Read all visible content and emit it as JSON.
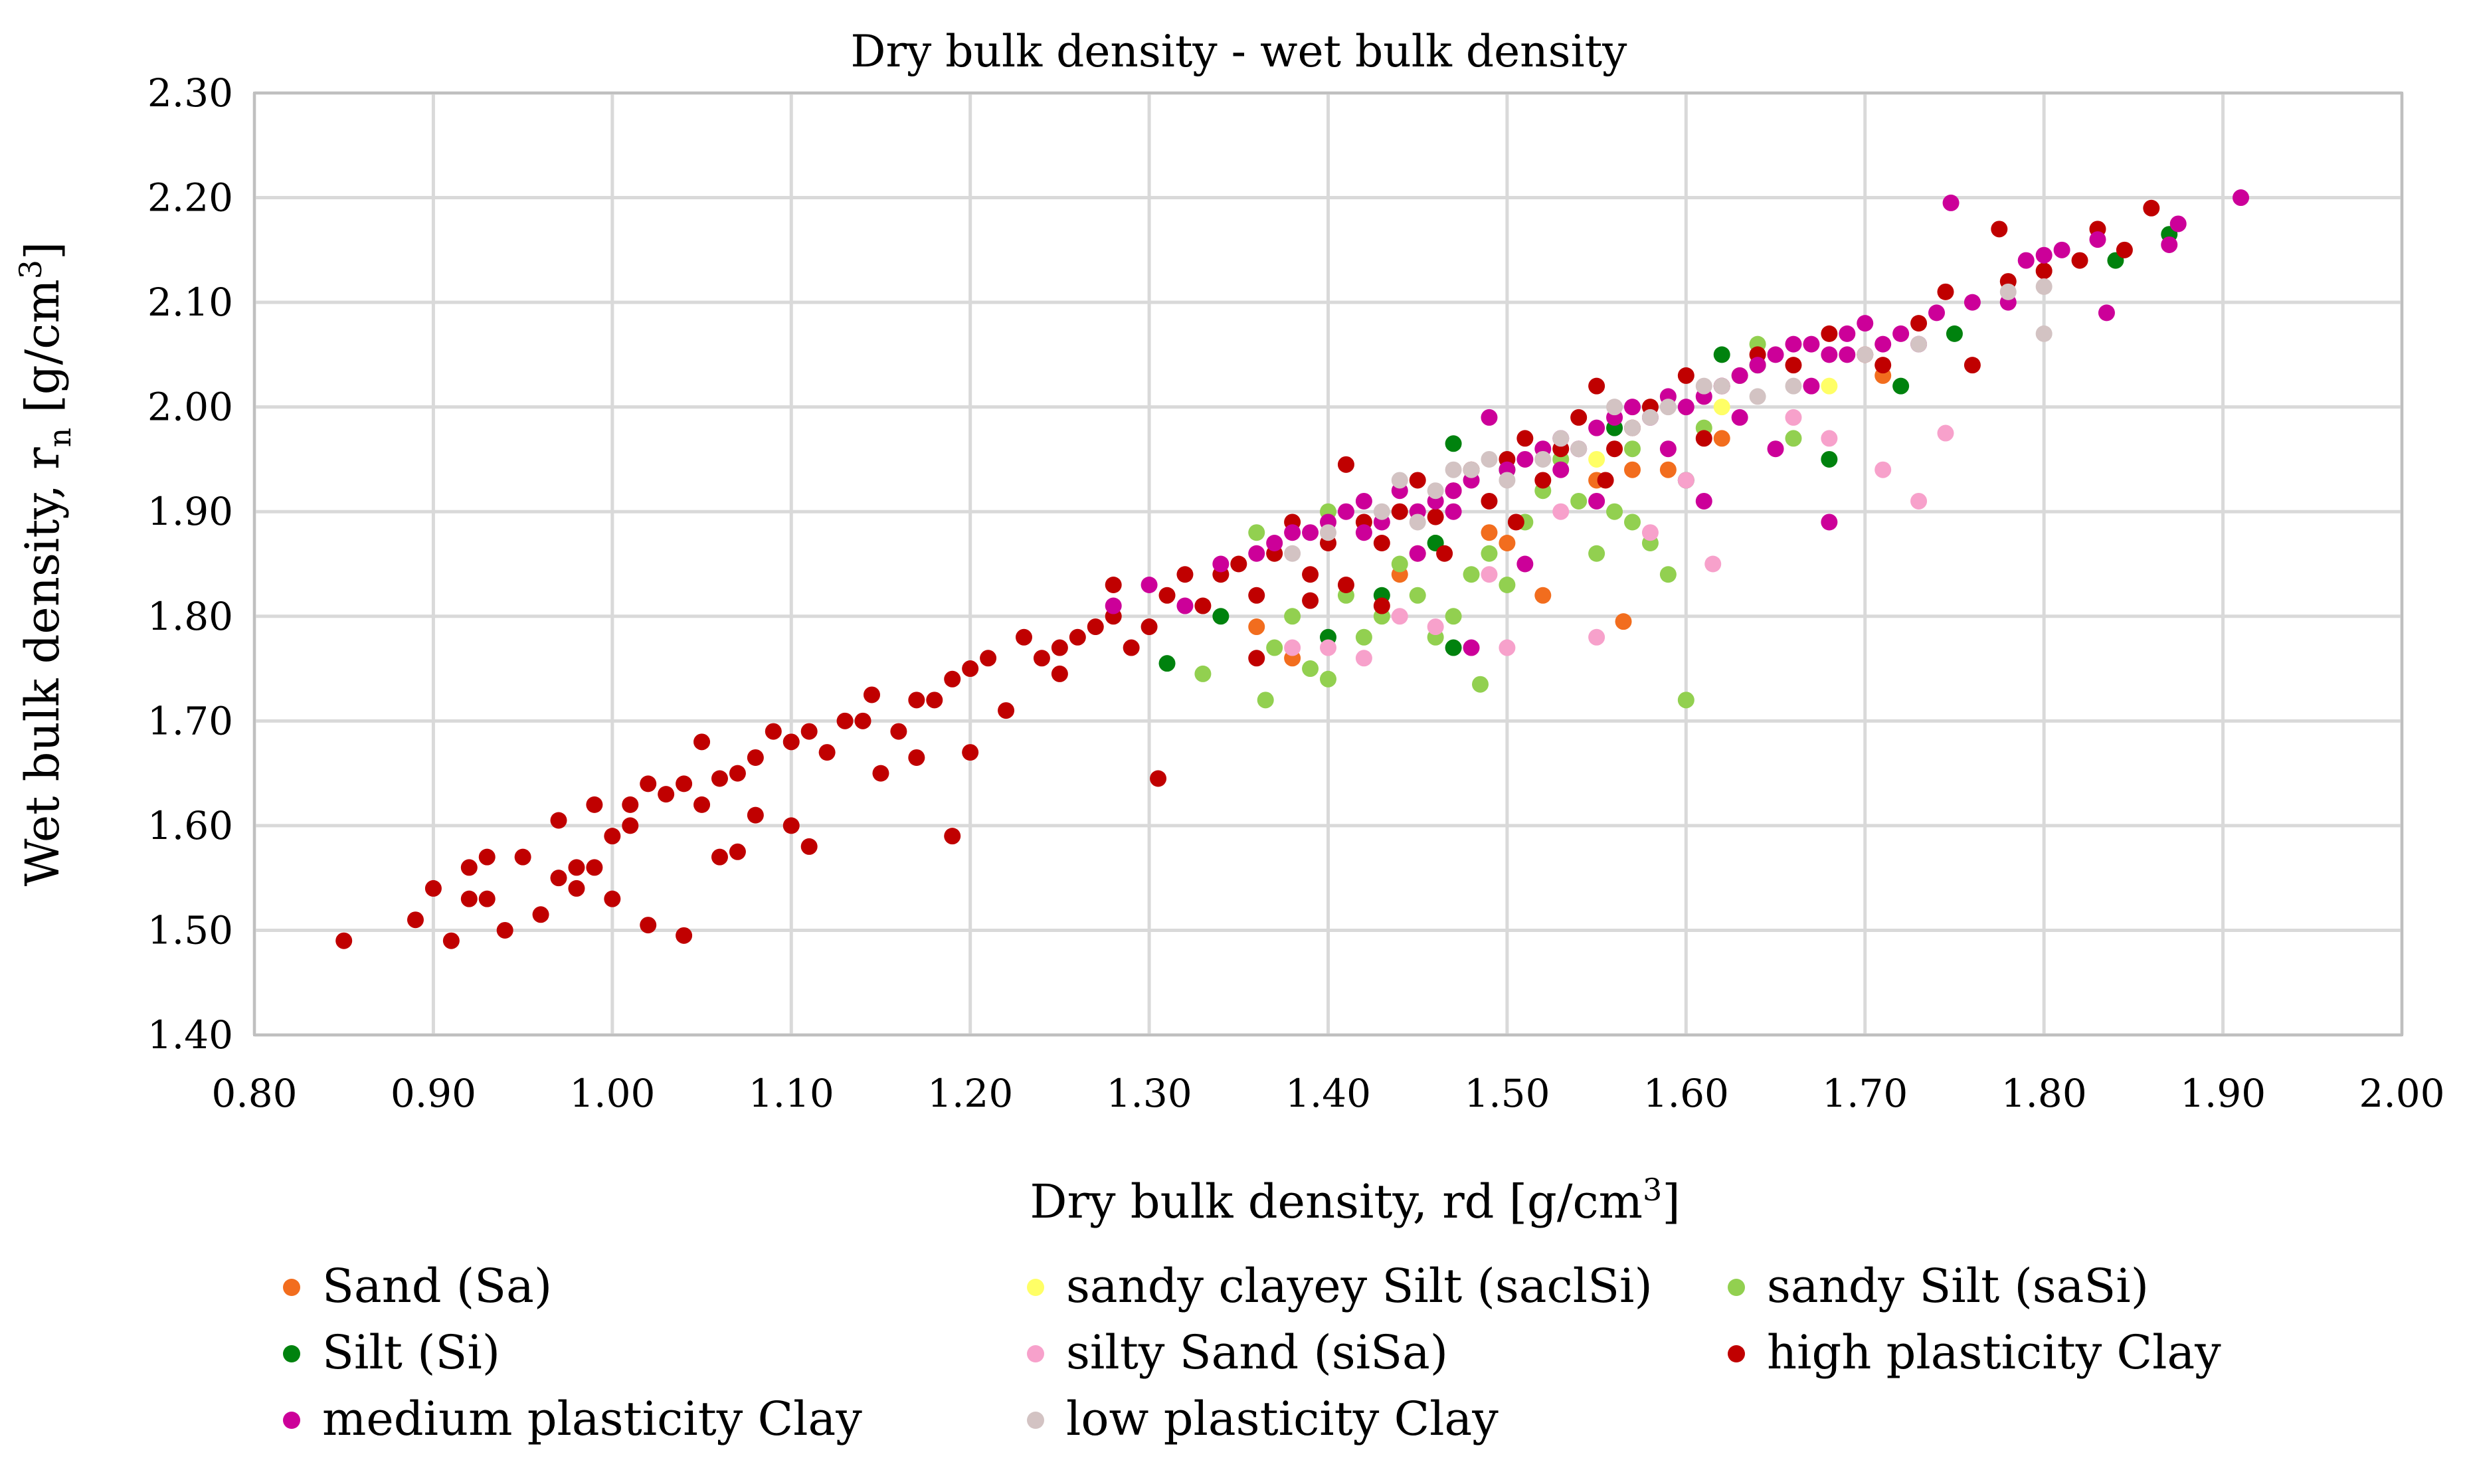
{
  "chart_data": {
    "type": "scatter",
    "title": "Dry bulk density - wet bulk density",
    "xlabel_main": "Dry bulk density, rd [g/cm",
    "xlabel_sup": "3",
    "xlabel_end": "]",
    "ylabel_main": "Wet bulk density,  r",
    "ylabel_sub": "n",
    "ylabel_mid": " [g/cm",
    "ylabel_sup": "3",
    "ylabel_end": "]",
    "xlim": [
      0.8,
      2.0
    ],
    "ylim": [
      1.4,
      2.3
    ],
    "x_ticks": [
      "0.80",
      "0.90",
      "1.00",
      "1.10",
      "1.20",
      "1.30",
      "1.40",
      "1.50",
      "1.60",
      "1.70",
      "1.80",
      "1.90",
      "2.00"
    ],
    "y_ticks": [
      "1.40",
      "1.50",
      "1.60",
      "1.70",
      "1.80",
      "1.90",
      "2.00",
      "2.10",
      "2.20",
      "2.30"
    ],
    "grid": true,
    "legend_position": "bottom",
    "series": [
      {
        "name": "Sand (Sa)",
        "color": "#f26d1e",
        "points": [
          [
            1.36,
            1.79
          ],
          [
            1.38,
            1.76
          ],
          [
            1.44,
            1.84
          ],
          [
            1.49,
            1.88
          ],
          [
            1.52,
            1.82
          ],
          [
            1.565,
            1.795
          ],
          [
            1.55,
            1.93
          ],
          [
            1.59,
            1.94
          ],
          [
            1.62,
            1.97
          ],
          [
            1.71,
            2.03
          ],
          [
            1.57,
            1.94
          ],
          [
            1.5,
            1.87
          ]
        ]
      },
      {
        "name": "sandy clayey Silt (saclSi)",
        "color": "#ffff66",
        "points": [
          [
            1.45,
            1.86
          ],
          [
            1.55,
            1.95
          ],
          [
            1.62,
            2.0
          ],
          [
            1.68,
            2.02
          ]
        ]
      },
      {
        "name": "sandy Silt (saSi)",
        "color": "#92d050",
        "points": [
          [
            1.33,
            1.745
          ],
          [
            1.365,
            1.72
          ],
          [
            1.37,
            1.77
          ],
          [
            1.38,
            1.8
          ],
          [
            1.39,
            1.75
          ],
          [
            1.4,
            1.74
          ],
          [
            1.41,
            1.82
          ],
          [
            1.42,
            1.78
          ],
          [
            1.43,
            1.8
          ],
          [
            1.44,
            1.85
          ],
          [
            1.45,
            1.82
          ],
          [
            1.46,
            1.78
          ],
          [
            1.47,
            1.8
          ],
          [
            1.48,
            1.84
          ],
          [
            1.485,
            1.735
          ],
          [
            1.49,
            1.86
          ],
          [
            1.5,
            1.83
          ],
          [
            1.51,
            1.89
          ],
          [
            1.52,
            1.92
          ],
          [
            1.53,
            1.95
          ],
          [
            1.54,
            1.91
          ],
          [
            1.55,
            1.86
          ],
          [
            1.56,
            1.9
          ],
          [
            1.57,
            1.89
          ],
          [
            1.58,
            1.87
          ],
          [
            1.59,
            1.84
          ],
          [
            1.6,
            1.72
          ],
          [
            1.61,
            1.98
          ],
          [
            1.63,
            2.03
          ],
          [
            1.64,
            2.06
          ],
          [
            1.66,
            1.97
          ],
          [
            1.36,
            1.88
          ],
          [
            1.4,
            1.9
          ],
          [
            1.46,
            1.87
          ],
          [
            1.57,
            1.96
          ]
        ]
      },
      {
        "name": "Silt (Si)",
        "color": "#00820e",
        "points": [
          [
            1.31,
            1.755
          ],
          [
            1.34,
            1.8
          ],
          [
            1.4,
            1.78
          ],
          [
            1.43,
            1.82
          ],
          [
            1.46,
            1.87
          ],
          [
            1.47,
            1.77
          ],
          [
            1.47,
            1.965
          ],
          [
            1.5,
            1.94
          ],
          [
            1.56,
            1.98
          ],
          [
            1.6,
            1.93
          ],
          [
            1.62,
            2.05
          ],
          [
            1.64,
            2.04
          ],
          [
            1.68,
            1.95
          ],
          [
            1.72,
            2.02
          ],
          [
            1.75,
            2.07
          ],
          [
            1.84,
            2.14
          ],
          [
            1.87,
            2.165
          ]
        ]
      },
      {
        "name": "silty Sand (siSa)",
        "color": "#f7a1cb",
        "points": [
          [
            1.38,
            1.77
          ],
          [
            1.4,
            1.77
          ],
          [
            1.42,
            1.76
          ],
          [
            1.44,
            1.8
          ],
          [
            1.46,
            1.79
          ],
          [
            1.49,
            1.84
          ],
          [
            1.5,
            1.77
          ],
          [
            1.55,
            1.78
          ],
          [
            1.58,
            1.88
          ],
          [
            1.6,
            1.93
          ],
          [
            1.615,
            1.85
          ],
          [
            1.66,
            1.99
          ],
          [
            1.68,
            1.97
          ],
          [
            1.71,
            1.94
          ],
          [
            1.73,
            1.91
          ],
          [
            1.745,
            1.975
          ],
          [
            1.53,
            1.9
          ]
        ]
      },
      {
        "name": "high plasticity Clay",
        "color": "#c00000",
        "points": [
          [
            0.85,
            1.49
          ],
          [
            0.89,
            1.51
          ],
          [
            0.9,
            1.54
          ],
          [
            0.91,
            1.49
          ],
          [
            0.92,
            1.53
          ],
          [
            0.92,
            1.56
          ],
          [
            0.93,
            1.57
          ],
          [
            0.93,
            1.53
          ],
          [
            0.94,
            1.5
          ],
          [
            0.95,
            1.57
          ],
          [
            0.96,
            1.515
          ],
          [
            0.97,
            1.55
          ],
          [
            0.97,
            1.605
          ],
          [
            0.98,
            1.54
          ],
          [
            0.98,
            1.56
          ],
          [
            0.99,
            1.56
          ],
          [
            0.99,
            1.62
          ],
          [
            1.0,
            1.59
          ],
          [
            1.0,
            1.53
          ],
          [
            1.01,
            1.6
          ],
          [
            1.01,
            1.62
          ],
          [
            1.02,
            1.64
          ],
          [
            1.02,
            1.505
          ],
          [
            1.03,
            1.63
          ],
          [
            1.04,
            1.64
          ],
          [
            1.04,
            1.495
          ],
          [
            1.05,
            1.68
          ],
          [
            1.05,
            1.62
          ],
          [
            1.06,
            1.645
          ],
          [
            1.06,
            1.57
          ],
          [
            1.07,
            1.65
          ],
          [
            1.07,
            1.575
          ],
          [
            1.08,
            1.61
          ],
          [
            1.08,
            1.665
          ],
          [
            1.09,
            1.69
          ],
          [
            1.1,
            1.6
          ],
          [
            1.1,
            1.68
          ],
          [
            1.11,
            1.69
          ],
          [
            1.11,
            1.58
          ],
          [
            1.12,
            1.67
          ],
          [
            1.13,
            1.7
          ],
          [
            1.14,
            1.7
          ],
          [
            1.145,
            1.725
          ],
          [
            1.15,
            1.65
          ],
          [
            1.16,
            1.69
          ],
          [
            1.17,
            1.72
          ],
          [
            1.17,
            1.665
          ],
          [
            1.18,
            1.72
          ],
          [
            1.19,
            1.59
          ],
          [
            1.19,
            1.74
          ],
          [
            1.2,
            1.67
          ],
          [
            1.2,
            1.75
          ],
          [
            1.21,
            1.76
          ],
          [
            1.22,
            1.71
          ],
          [
            1.23,
            1.78
          ],
          [
            1.24,
            1.76
          ],
          [
            1.25,
            1.77
          ],
          [
            1.25,
            1.745
          ],
          [
            1.26,
            1.78
          ],
          [
            1.27,
            1.79
          ],
          [
            1.28,
            1.8
          ],
          [
            1.28,
            1.83
          ],
          [
            1.29,
            1.77
          ],
          [
            1.3,
            1.79
          ],
          [
            1.305,
            1.645
          ],
          [
            1.31,
            1.82
          ],
          [
            1.32,
            1.84
          ],
          [
            1.33,
            1.81
          ],
          [
            1.34,
            1.84
          ],
          [
            1.35,
            1.85
          ],
          [
            1.36,
            1.82
          ],
          [
            1.37,
            1.86
          ],
          [
            1.38,
            1.89
          ],
          [
            1.39,
            1.84
          ],
          [
            1.4,
            1.87
          ],
          [
            1.41,
            1.945
          ],
          [
            1.42,
            1.89
          ],
          [
            1.43,
            1.81
          ],
          [
            1.44,
            1.9
          ],
          [
            1.45,
            1.93
          ],
          [
            1.46,
            1.895
          ],
          [
            1.47,
            1.92
          ],
          [
            1.48,
            1.94
          ],
          [
            1.49,
            1.91
          ],
          [
            1.5,
            1.95
          ],
          [
            1.51,
            1.97
          ],
          [
            1.52,
            1.93
          ],
          [
            1.53,
            1.96
          ],
          [
            1.54,
            1.99
          ],
          [
            1.55,
            2.02
          ],
          [
            1.56,
            1.96
          ],
          [
            1.57,
            1.98
          ],
          [
            1.58,
            2.0
          ],
          [
            1.6,
            2.03
          ],
          [
            1.62,
            2.02
          ],
          [
            1.64,
            2.05
          ],
          [
            1.66,
            2.04
          ],
          [
            1.68,
            2.07
          ],
          [
            1.7,
            2.05
          ],
          [
            1.71,
            2.04
          ],
          [
            1.73,
            2.08
          ],
          [
            1.745,
            2.11
          ],
          [
            1.76,
            2.04
          ],
          [
            1.775,
            2.17
          ],
          [
            1.78,
            2.12
          ],
          [
            1.8,
            2.13
          ],
          [
            1.82,
            2.14
          ],
          [
            1.83,
            2.17
          ],
          [
            1.845,
            2.15
          ],
          [
            1.86,
            2.19
          ],
          [
            1.36,
            1.76
          ],
          [
            1.41,
            1.83
          ],
          [
            1.465,
            1.86
          ],
          [
            1.505,
            1.89
          ],
          [
            1.555,
            1.93
          ],
          [
            1.61,
            1.97
          ],
          [
            1.39,
            1.815
          ],
          [
            1.43,
            1.87
          ]
        ]
      },
      {
        "name": "medium plasticity Clay",
        "color": "#cc0099",
        "points": [
          [
            1.28,
            1.81
          ],
          [
            1.3,
            1.83
          ],
          [
            1.32,
            1.81
          ],
          [
            1.34,
            1.85
          ],
          [
            1.36,
            1.86
          ],
          [
            1.37,
            1.87
          ],
          [
            1.38,
            1.88
          ],
          [
            1.39,
            1.88
          ],
          [
            1.4,
            1.89
          ],
          [
            1.41,
            1.9
          ],
          [
            1.42,
            1.91
          ],
          [
            1.43,
            1.89
          ],
          [
            1.44,
            1.92
          ],
          [
            1.45,
            1.9
          ],
          [
            1.46,
            1.91
          ],
          [
            1.47,
            1.92
          ],
          [
            1.48,
            1.93
          ],
          [
            1.49,
            1.99
          ],
          [
            1.5,
            1.94
          ],
          [
            1.51,
            1.95
          ],
          [
            1.52,
            1.96
          ],
          [
            1.53,
            1.97
          ],
          [
            1.54,
            1.96
          ],
          [
            1.55,
            1.98
          ],
          [
            1.56,
            1.99
          ],
          [
            1.57,
            2.0
          ],
          [
            1.58,
            1.99
          ],
          [
            1.59,
            2.01
          ],
          [
            1.6,
            2.0
          ],
          [
            1.61,
            2.01
          ],
          [
            1.62,
            2.02
          ],
          [
            1.63,
            2.03
          ],
          [
            1.64,
            2.04
          ],
          [
            1.65,
            2.05
          ],
          [
            1.66,
            2.06
          ],
          [
            1.67,
            2.06
          ],
          [
            1.68,
            2.05
          ],
          [
            1.69,
            2.07
          ],
          [
            1.7,
            2.08
          ],
          [
            1.71,
            2.06
          ],
          [
            1.72,
            2.07
          ],
          [
            1.74,
            2.09
          ],
          [
            1.748,
            2.195
          ],
          [
            1.76,
            2.1
          ],
          [
            1.78,
            2.1
          ],
          [
            1.79,
            2.14
          ],
          [
            1.8,
            2.145
          ],
          [
            1.81,
            2.15
          ],
          [
            1.83,
            2.16
          ],
          [
            1.835,
            2.09
          ],
          [
            1.87,
            2.155
          ],
          [
            1.875,
            2.175
          ],
          [
            1.91,
            2.2
          ],
          [
            1.48,
            1.77
          ],
          [
            1.51,
            1.85
          ],
          [
            1.61,
            1.91
          ],
          [
            1.68,
            1.89
          ],
          [
            1.65,
            1.96
          ],
          [
            1.59,
            1.96
          ],
          [
            1.55,
            1.91
          ],
          [
            1.45,
            1.86
          ],
          [
            1.42,
            1.88
          ],
          [
            1.63,
            1.99
          ],
          [
            1.67,
            2.02
          ],
          [
            1.69,
            2.05
          ],
          [
            1.73,
            2.06
          ],
          [
            1.53,
            1.94
          ],
          [
            1.47,
            1.9
          ]
        ]
      },
      {
        "name": "low plasticity Clay",
        "color": "#d3c3c3",
        "points": [
          [
            1.38,
            1.86
          ],
          [
            1.4,
            1.88
          ],
          [
            1.43,
            1.9
          ],
          [
            1.44,
            1.93
          ],
          [
            1.46,
            1.92
          ],
          [
            1.48,
            1.94
          ],
          [
            1.5,
            1.93
          ],
          [
            1.52,
            1.95
          ],
          [
            1.54,
            1.96
          ],
          [
            1.56,
            2.0
          ],
          [
            1.58,
            1.99
          ],
          [
            1.59,
            2.0
          ],
          [
            1.62,
            2.02
          ],
          [
            1.66,
            2.02
          ],
          [
            1.7,
            2.05
          ],
          [
            1.73,
            2.06
          ],
          [
            1.78,
            2.11
          ],
          [
            1.8,
            2.07
          ],
          [
            1.8,
            2.115
          ],
          [
            1.47,
            1.94
          ],
          [
            1.53,
            1.97
          ],
          [
            1.57,
            1.98
          ],
          [
            1.61,
            2.02
          ],
          [
            1.64,
            2.01
          ],
          [
            1.49,
            1.95
          ],
          [
            1.45,
            1.89
          ]
        ]
      }
    ]
  }
}
